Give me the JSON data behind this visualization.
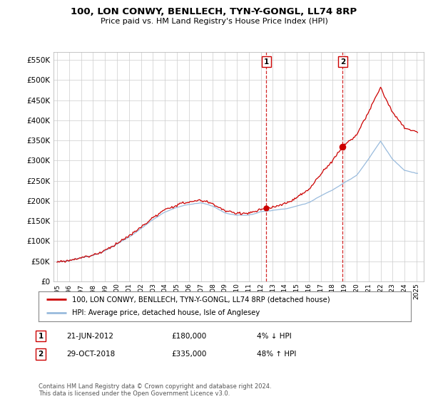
{
  "title": "100, LON CONWY, BENLLECH, TYN-Y-GONGL, LL74 8RP",
  "subtitle": "Price paid vs. HM Land Registry's House Price Index (HPI)",
  "ylim": [
    0,
    570000
  ],
  "yticks": [
    0,
    50000,
    100000,
    150000,
    200000,
    250000,
    300000,
    350000,
    400000,
    450000,
    500000,
    550000
  ],
  "ytick_labels": [
    "£0",
    "£50K",
    "£100K",
    "£150K",
    "£200K",
    "£250K",
    "£300K",
    "£350K",
    "£400K",
    "£450K",
    "£500K",
    "£550K"
  ],
  "property_color": "#cc0000",
  "hpi_color": "#99bbdd",
  "marker1_date": "21-JUN-2012",
  "marker1_price": "£180,000",
  "marker1_hpi": "4% ↓ HPI",
  "marker2_date": "29-OCT-2018",
  "marker2_price": "£335,000",
  "marker2_hpi": "48% ↑ HPI",
  "legend_property": "100, LON CONWY, BENLLECH, TYN-Y-GONGL, LL74 8RP (detached house)",
  "legend_hpi": "HPI: Average price, detached house, Isle of Anglesey",
  "footer": "Contains HM Land Registry data © Crown copyright and database right 2024.\nThis data is licensed under the Open Government Licence v3.0.",
  "background_color": "#ffffff",
  "grid_color": "#cccccc",
  "vline1_x": 2012.47,
  "vline2_x": 2018.83,
  "vline_color": "#cc0000",
  "sale1_x": 2012.47,
  "sale1_y": 180000,
  "sale2_x": 2018.83,
  "sale2_y": 335000,
  "xlim_left": 1994.7,
  "xlim_right": 2025.6
}
